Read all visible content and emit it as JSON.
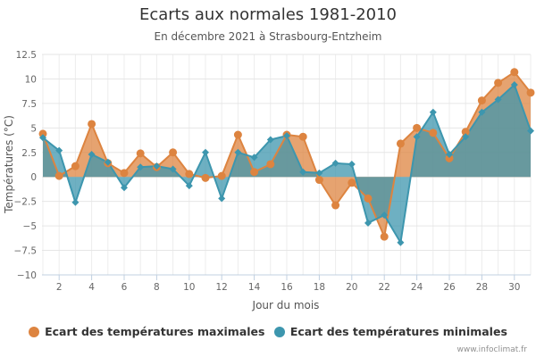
{
  "chart_data": {
    "type": "area",
    "title": "Ecarts aux normales 1981-2010",
    "subtitle": "En décembre 2021 à Strasbourg-Entzheim",
    "xlabel": "Jour du mois",
    "ylabel": "Températures (°C)",
    "xlim": [
      1,
      31
    ],
    "ylim": [
      -10,
      12.5
    ],
    "x_ticks": [
      2,
      4,
      6,
      8,
      10,
      12,
      14,
      16,
      18,
      20,
      22,
      24,
      26,
      28,
      30
    ],
    "y_ticks": [
      12.5,
      10,
      7.5,
      5,
      2.5,
      0,
      -2.5,
      -5,
      -7.5,
      -10
    ],
    "y_tick_labels": [
      "12.5",
      "10",
      "7.5",
      "5",
      "2.5",
      "0",
      "−2.5",
      "−5",
      "−7.5",
      "−10"
    ],
    "grid": true,
    "legend_position": "bottom",
    "x": [
      1,
      2,
      3,
      4,
      5,
      6,
      7,
      8,
      9,
      10,
      11,
      12,
      13,
      14,
      15,
      16,
      17,
      18,
      19,
      20,
      21,
      22,
      23,
      24,
      25,
      26,
      27,
      28,
      29,
      30,
      31
    ],
    "series": [
      {
        "name": "Ecart des températures maximales",
        "color": "#dd8440",
        "marker": "circle",
        "values": [
          4.4,
          0.1,
          1.1,
          5.4,
          1.4,
          0.4,
          2.4,
          1.0,
          2.5,
          0.3,
          -0.1,
          0.1,
          4.3,
          0.5,
          1.3,
          4.3,
          4.1,
          -0.3,
          -2.9,
          -0.6,
          -2.2,
          -6.1,
          3.4,
          5.0,
          4.5,
          1.9,
          4.6,
          7.8,
          9.6,
          10.7,
          8.6
        ]
      },
      {
        "name": "Ecart des températures minimales",
        "color": "#3d96ae",
        "marker": "diamond",
        "values": [
          4.0,
          2.7,
          -2.6,
          2.3,
          1.5,
          -1.1,
          1.0,
          1.1,
          0.8,
          -0.9,
          2.5,
          -2.2,
          2.5,
          2.0,
          3.8,
          4.2,
          0.5,
          0.4,
          1.4,
          1.3,
          -4.7,
          -3.9,
          -6.7,
          4.1,
          6.6,
          2.3,
          4.1,
          6.6,
          7.9,
          9.4,
          4.7
        ]
      }
    ]
  },
  "credit": "www.infoclimat.fr"
}
